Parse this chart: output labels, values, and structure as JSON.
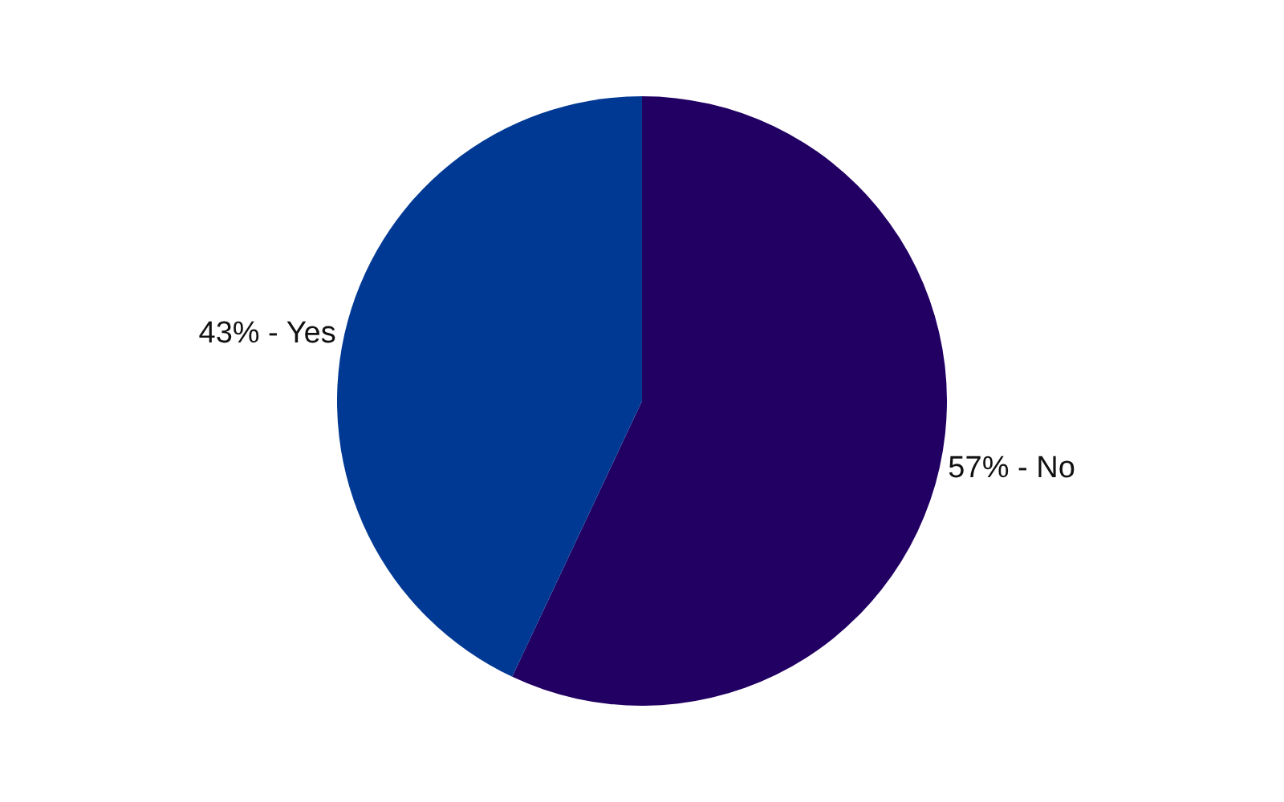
{
  "chart_data": {
    "type": "pie",
    "categories": [
      "57% - No",
      "43% - Yes"
    ],
    "values": [
      57,
      43
    ],
    "colors": [
      "#220063",
      "#003994"
    ],
    "legend": false
  }
}
